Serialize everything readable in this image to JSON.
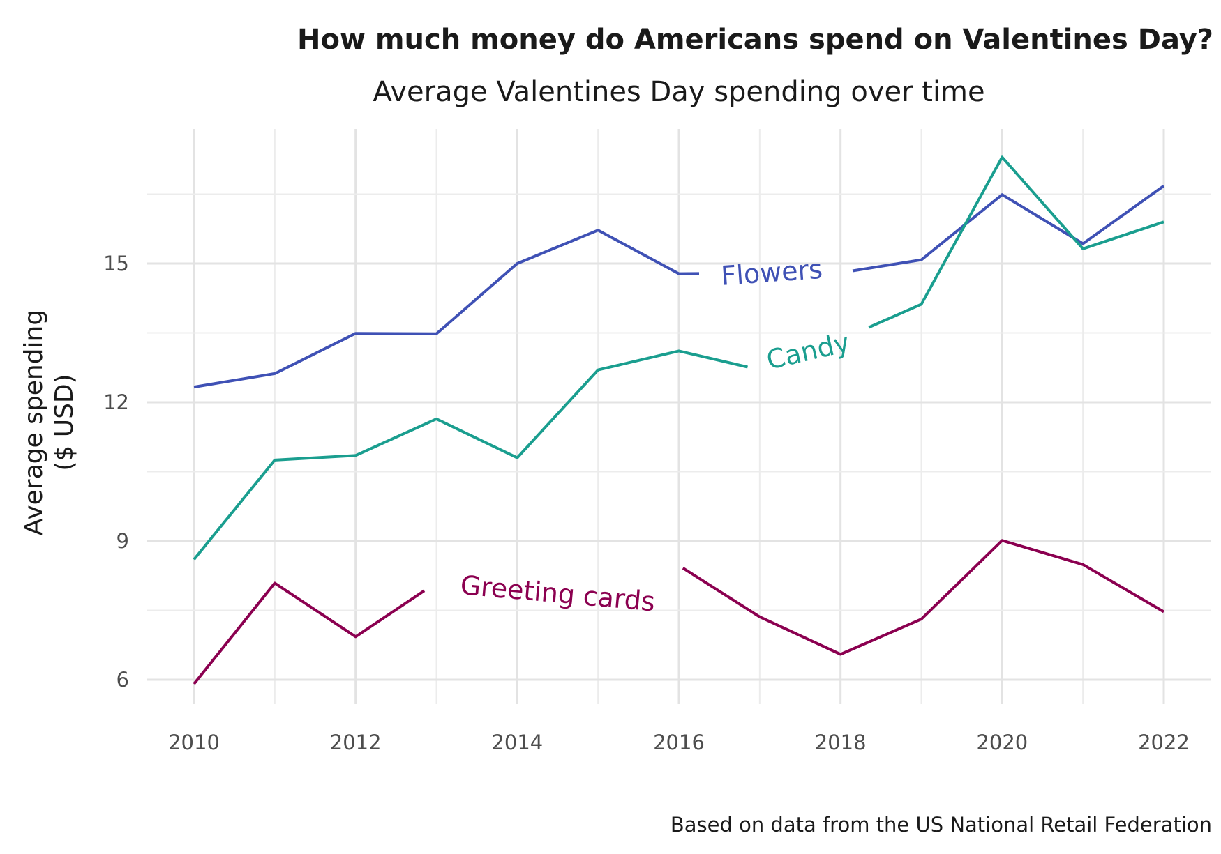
{
  "chart_data": {
    "type": "line",
    "title": "How much money do Americans spend on Valentines Day?",
    "subtitle": "Average Valentines Day spending over time",
    "ylabel": "Average spending\n($ USD)",
    "xlabel": "",
    "caption": "Based on data from the US National Retail Federation",
    "x": [
      2010,
      2011,
      2012,
      2013,
      2014,
      2015,
      2016,
      2017,
      2018,
      2019,
      2020,
      2021,
      2022
    ],
    "xticks": [
      "2010",
      "2012",
      "2014",
      "2016",
      "2018",
      "2020",
      "2022"
    ],
    "yticks": [
      "6",
      "9",
      "12",
      "15"
    ],
    "xlim": [
      2009.4,
      2022.4
    ],
    "ylim": [
      5.6,
      17.6
    ],
    "grid": true,
    "legend": "none (direct labels on lines)",
    "series": [
      {
        "name": "Flowers",
        "color": "#3f51b5",
        "values": [
          12.33,
          12.62,
          13.49,
          13.48,
          15.0,
          15.72,
          14.78,
          null,
          14.8,
          15.08,
          16.49,
          15.43,
          16.68
        ]
      },
      {
        "name": "Candy",
        "color": "#1a9e8f",
        "values": [
          8.6,
          10.75,
          10.85,
          11.64,
          10.8,
          12.7,
          13.11,
          12.7,
          13.35,
          14.12,
          17.3,
          15.32,
          15.9
        ]
      },
      {
        "name": "Greeting cards",
        "color": "#8b0050",
        "values": [
          5.91,
          8.09,
          6.93,
          8.1,
          7.9,
          7.8,
          8.47,
          7.36,
          6.55,
          7.31,
          9.01,
          8.49,
          7.47
        ]
      }
    ]
  }
}
